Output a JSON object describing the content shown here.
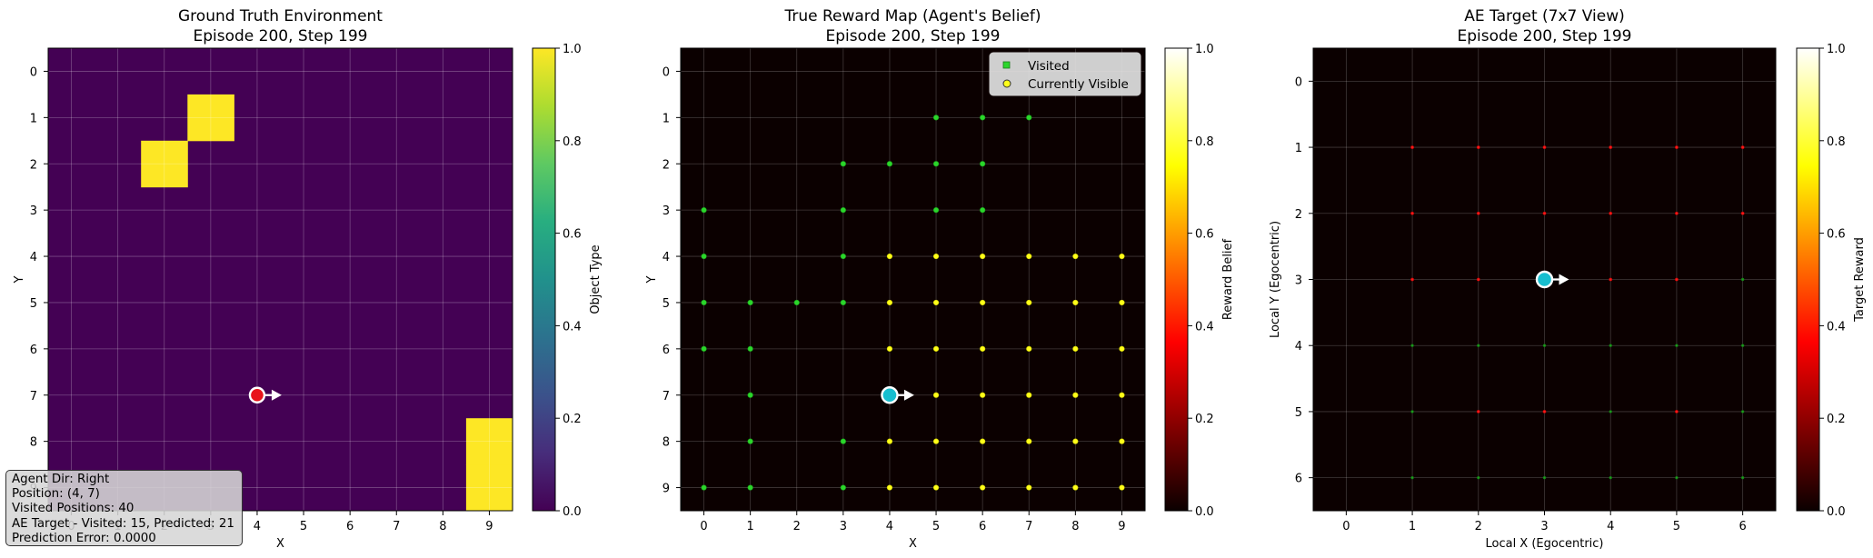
{
  "chart_data": [
    {
      "type": "heatmap",
      "title": "Ground Truth Environment",
      "subtitle": "Episode 200, Step 199",
      "xlabel": "X",
      "ylabel": "Y",
      "x_ticks": [
        "0",
        "1",
        "2",
        "3",
        "4",
        "5",
        "6",
        "7",
        "8",
        "9"
      ],
      "y_ticks": [
        "0",
        "1",
        "2",
        "3",
        "4",
        "5",
        "6",
        "7",
        "8",
        "9"
      ],
      "grid": true,
      "colormap": "viridis",
      "background_value": 0.0,
      "cells": [
        {
          "x": 3,
          "y": 1,
          "value": 1.0
        },
        {
          "x": 2,
          "y": 2,
          "value": 1.0
        },
        {
          "x": 9,
          "y": 8,
          "value": 1.0
        },
        {
          "x": 9,
          "y": 9,
          "value": 1.0
        }
      ],
      "agent": {
        "x": 4,
        "y": 7,
        "direction": "right",
        "color": "#e8141a"
      },
      "colorbar": {
        "label": "Object Type",
        "ticks": [
          "0.0",
          "0.2",
          "0.4",
          "0.6",
          "0.8",
          "1.0"
        ],
        "range": [
          0,
          1
        ]
      }
    },
    {
      "type": "heatmap",
      "title": "True Reward Map (Agent's Belief)",
      "subtitle": "Episode 200, Step 199",
      "xlabel": "X",
      "ylabel": "Y",
      "x_ticks": [
        "0",
        "1",
        "2",
        "3",
        "4",
        "5",
        "6",
        "7",
        "8",
        "9"
      ],
      "y_ticks": [
        "0",
        "1",
        "2",
        "3",
        "4",
        "5",
        "6",
        "7",
        "8",
        "9"
      ],
      "grid": true,
      "colormap": "hot",
      "legend": {
        "position": "upper-right",
        "entries": [
          "Visited",
          "Currently Visible"
        ]
      },
      "visited_points": [
        [
          5,
          1
        ],
        [
          6,
          1
        ],
        [
          7,
          1
        ],
        [
          3,
          2
        ],
        [
          4,
          2
        ],
        [
          5,
          2
        ],
        [
          6,
          2
        ],
        [
          0,
          3
        ],
        [
          3,
          3
        ],
        [
          5,
          3
        ],
        [
          6,
          3
        ],
        [
          0,
          4
        ],
        [
          3,
          4
        ],
        [
          0,
          5
        ],
        [
          1,
          5
        ],
        [
          2,
          5
        ],
        [
          3,
          5
        ],
        [
          0,
          6
        ],
        [
          1,
          6
        ],
        [
          1,
          7
        ],
        [
          1,
          8
        ],
        [
          3,
          8
        ],
        [
          0,
          9
        ],
        [
          1,
          9
        ],
        [
          3,
          9
        ]
      ],
      "visible_points": [
        [
          4,
          4
        ],
        [
          5,
          4
        ],
        [
          6,
          4
        ],
        [
          7,
          4
        ],
        [
          8,
          4
        ],
        [
          9,
          4
        ],
        [
          4,
          5
        ],
        [
          5,
          5
        ],
        [
          6,
          5
        ],
        [
          7,
          5
        ],
        [
          8,
          5
        ],
        [
          9,
          5
        ],
        [
          4,
          6
        ],
        [
          5,
          6
        ],
        [
          6,
          6
        ],
        [
          7,
          6
        ],
        [
          8,
          6
        ],
        [
          9,
          6
        ],
        [
          5,
          7
        ],
        [
          6,
          7
        ],
        [
          7,
          7
        ],
        [
          8,
          7
        ],
        [
          9,
          7
        ],
        [
          4,
          8
        ],
        [
          5,
          8
        ],
        [
          6,
          8
        ],
        [
          7,
          8
        ],
        [
          8,
          8
        ],
        [
          9,
          8
        ],
        [
          4,
          9
        ],
        [
          5,
          9
        ],
        [
          6,
          9
        ],
        [
          7,
          9
        ],
        [
          8,
          9
        ],
        [
          9,
          9
        ]
      ],
      "agent": {
        "x": 4,
        "y": 7,
        "direction": "right",
        "color": "#17becf"
      },
      "colorbar": {
        "label": "Reward Belief",
        "ticks": [
          "0.0",
          "0.2",
          "0.4",
          "0.6",
          "0.8",
          "1.0"
        ],
        "range": [
          0,
          1
        ]
      }
    },
    {
      "type": "heatmap",
      "title": "AE Target (7x7 View)",
      "subtitle": "Episode 200, Step 199",
      "xlabel": "Local X (Egocentric)",
      "ylabel": "Local Y (Egocentric)",
      "x_ticks": [
        "0",
        "1",
        "2",
        "3",
        "4",
        "5",
        "6"
      ],
      "y_ticks": [
        "0",
        "1",
        "2",
        "3",
        "4",
        "5",
        "6"
      ],
      "grid": true,
      "colormap": "hot",
      "red_points": [
        [
          1,
          1
        ],
        [
          2,
          1
        ],
        [
          3,
          1
        ],
        [
          4,
          1
        ],
        [
          5,
          1
        ],
        [
          6,
          1
        ],
        [
          1,
          2
        ],
        [
          2,
          2
        ],
        [
          3,
          2
        ],
        [
          4,
          2
        ],
        [
          5,
          2
        ],
        [
          6,
          2
        ],
        [
          1,
          3
        ],
        [
          2,
          3
        ],
        [
          4,
          3
        ],
        [
          5,
          3
        ],
        [
          2,
          5
        ],
        [
          3,
          5
        ],
        [
          5,
          5
        ]
      ],
      "green_points": [
        [
          6,
          3
        ],
        [
          1,
          4
        ],
        [
          2,
          4
        ],
        [
          3,
          4
        ],
        [
          4,
          4
        ],
        [
          5,
          4
        ],
        [
          6,
          4
        ],
        [
          1,
          5
        ],
        [
          4,
          5
        ],
        [
          6,
          5
        ],
        [
          1,
          6
        ],
        [
          2,
          6
        ],
        [
          3,
          6
        ],
        [
          4,
          6
        ],
        [
          5,
          6
        ],
        [
          6,
          6
        ]
      ],
      "agent": {
        "x": 3,
        "y": 3,
        "direction": "right",
        "color": "#17becf"
      },
      "colorbar": {
        "label": "Target Reward",
        "ticks": [
          "0.0",
          "0.2",
          "0.4",
          "0.6",
          "0.8",
          "1.0"
        ],
        "range": [
          0,
          1
        ]
      }
    }
  ],
  "info": {
    "agent_dir": "Agent Dir: Right",
    "position": "Position: (4, 7)",
    "visited": "Visited Positions: 40",
    "ae_target": "AE Target - Visited: 15, Predicted: 21",
    "error": "Prediction Error: 0.0000"
  }
}
